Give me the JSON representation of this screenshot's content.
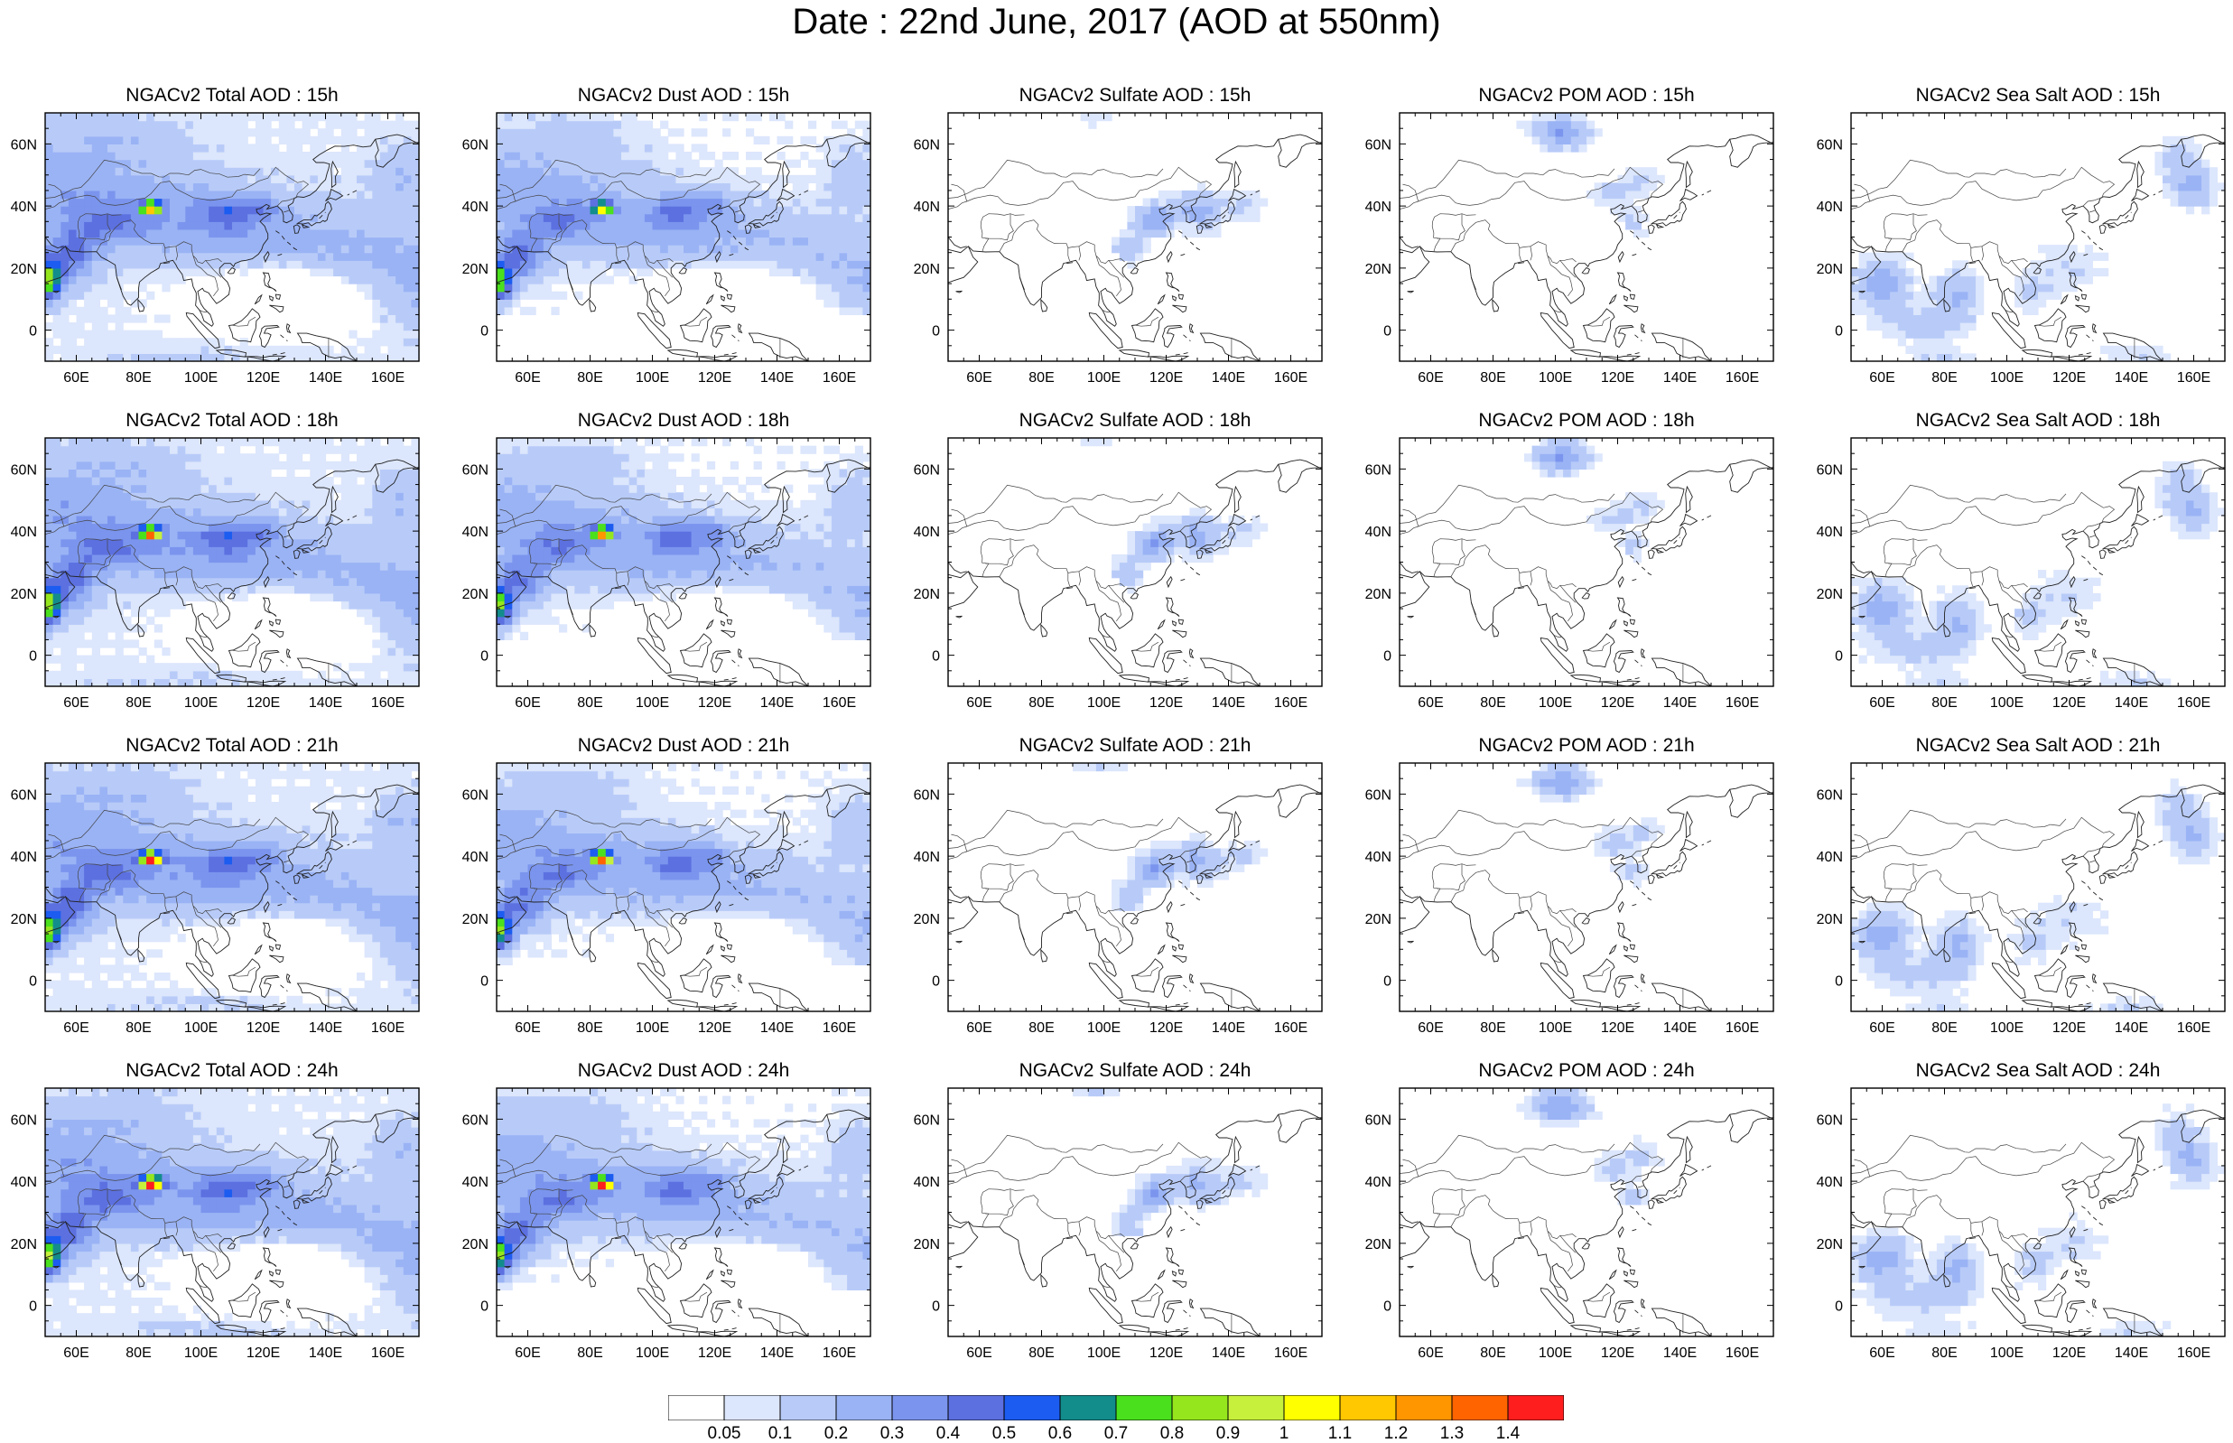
{
  "title": "Date : 22nd June, 2017 (AOD at 550nm)",
  "axes": {
    "lon_ticks": [
      "60E",
      "80E",
      "100E",
      "120E",
      "140E",
      "160E"
    ],
    "lat_ticks": [
      "60N",
      "40N",
      "20N",
      "0"
    ],
    "lon_range": [
      50,
      170
    ],
    "lat_range": [
      -10,
      70
    ]
  },
  "panels": [
    [
      "NGACv2 Total AOD : 15h",
      "NGACv2 Dust AOD : 15h",
      "NGACv2 Sulfate AOD : 15h",
      "NGACv2 POM AOD : 15h",
      "NGACv2 Sea Salt AOD : 15h"
    ],
    [
      "NGACv2 Total AOD : 18h",
      "NGACv2 Dust AOD : 18h",
      "NGACv2 Sulfate AOD : 18h",
      "NGACv2 POM AOD : 18h",
      "NGACv2 Sea Salt AOD : 18h"
    ],
    [
      "NGACv2 Total AOD : 21h",
      "NGACv2 Dust AOD : 21h",
      "NGACv2 Sulfate AOD : 21h",
      "NGACv2 POM AOD : 21h",
      "NGACv2 Sea Salt AOD : 21h"
    ],
    [
      "NGACv2 Total AOD : 24h",
      "NGACv2 Dust AOD : 24h",
      "NGACv2 Sulfate AOD : 24h",
      "NGACv2 POM AOD : 24h",
      "NGACv2 Sea Salt  AOD : 24h"
    ]
  ],
  "colorbar": {
    "labels": [
      "0.05",
      "0.1",
      "0.2",
      "0.3",
      "0.4",
      "0.5",
      "0.6",
      "0.7",
      "0.8",
      "0.9",
      "1",
      "1.1",
      "1.2",
      "1.3",
      "1.4"
    ],
    "colors": [
      "#ffffff",
      "#dce6fc",
      "#b8cbf8",
      "#9ab3f5",
      "#7b95ee",
      "#5c70e0",
      "#1c5cf0",
      "#138c8c",
      "#4be01e",
      "#96e61e",
      "#c7f03c",
      "#ffff00",
      "#ffc800",
      "#ff9600",
      "#ff6400",
      "#ff1e1e"
    ]
  }
}
